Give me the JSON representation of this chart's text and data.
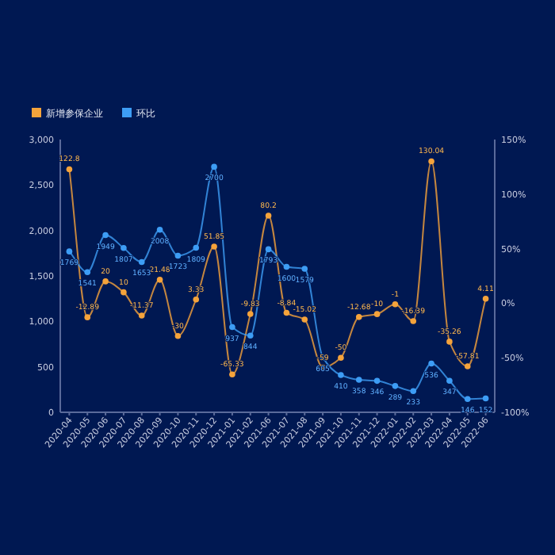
{
  "chart_data": {
    "type": "line",
    "categories": [
      "2020-04",
      "2020-05",
      "2020-06",
      "2020-07",
      "2020-08",
      "2020-09",
      "2020-10",
      "2020-11",
      "2020-12",
      "2021-01",
      "2021-02",
      "2021-06",
      "2021-07",
      "2021-08",
      "2021-09",
      "2021-10",
      "2021-11",
      "2021-12",
      "2022-01",
      "2022-02",
      "2022-03",
      "2022-04",
      "2022-05",
      "2022-06"
    ],
    "series": [
      {
        "name": "新增参保企业",
        "color": "#f5a33b",
        "axis": "y2",
        "values": [
          122.8,
          -12.89,
          20,
          10,
          -11.37,
          21.48,
          -30,
          3.33,
          51.85,
          -65.33,
          -9.83,
          80.2,
          -8.84,
          -15.02,
          -59,
          -50,
          -12.68,
          -10,
          -1,
          -16.39,
          130.04,
          -35.26,
          -57.81,
          4.11
        ]
      },
      {
        "name": "环比",
        "color": "#3d9df5",
        "axis": "y",
        "values": [
          1769,
          1541,
          1949,
          1807,
          1653,
          2008,
          1723,
          1809,
          2700,
          937,
          844,
          1793,
          1600,
          1579,
          605,
          410,
          358,
          346,
          289,
          233,
          536,
          347,
          146,
          152
        ]
      }
    ],
    "ylim": [
      0,
      3000
    ],
    "yticks": [
      0,
      {
        "value": 500,
        "label": "500"
      },
      {
        "value": 1000,
        "label": "1,000"
      },
      {
        "value": 1500,
        "label": "1,500"
      },
      {
        "value": 2000,
        "label": "2,000"
      },
      {
        "value": 2500,
        "label": "2,500"
      },
      {
        "value": 3000,
        "label": "3,000"
      }
    ],
    "y2lim": [
      -100,
      150
    ],
    "y2ticks": [
      {
        "value": -100,
        "label": "-100%"
      },
      {
        "value": -50,
        "label": "-50%"
      },
      {
        "value": 0,
        "label": "0%"
      },
      {
        "value": 50,
        "label": "50%"
      },
      {
        "value": 100,
        "label": "100%"
      },
      {
        "value": 150,
        "label": "150%"
      }
    ],
    "data_labels": true,
    "legend": "top left",
    "marker": "circle",
    "grid": false
  }
}
